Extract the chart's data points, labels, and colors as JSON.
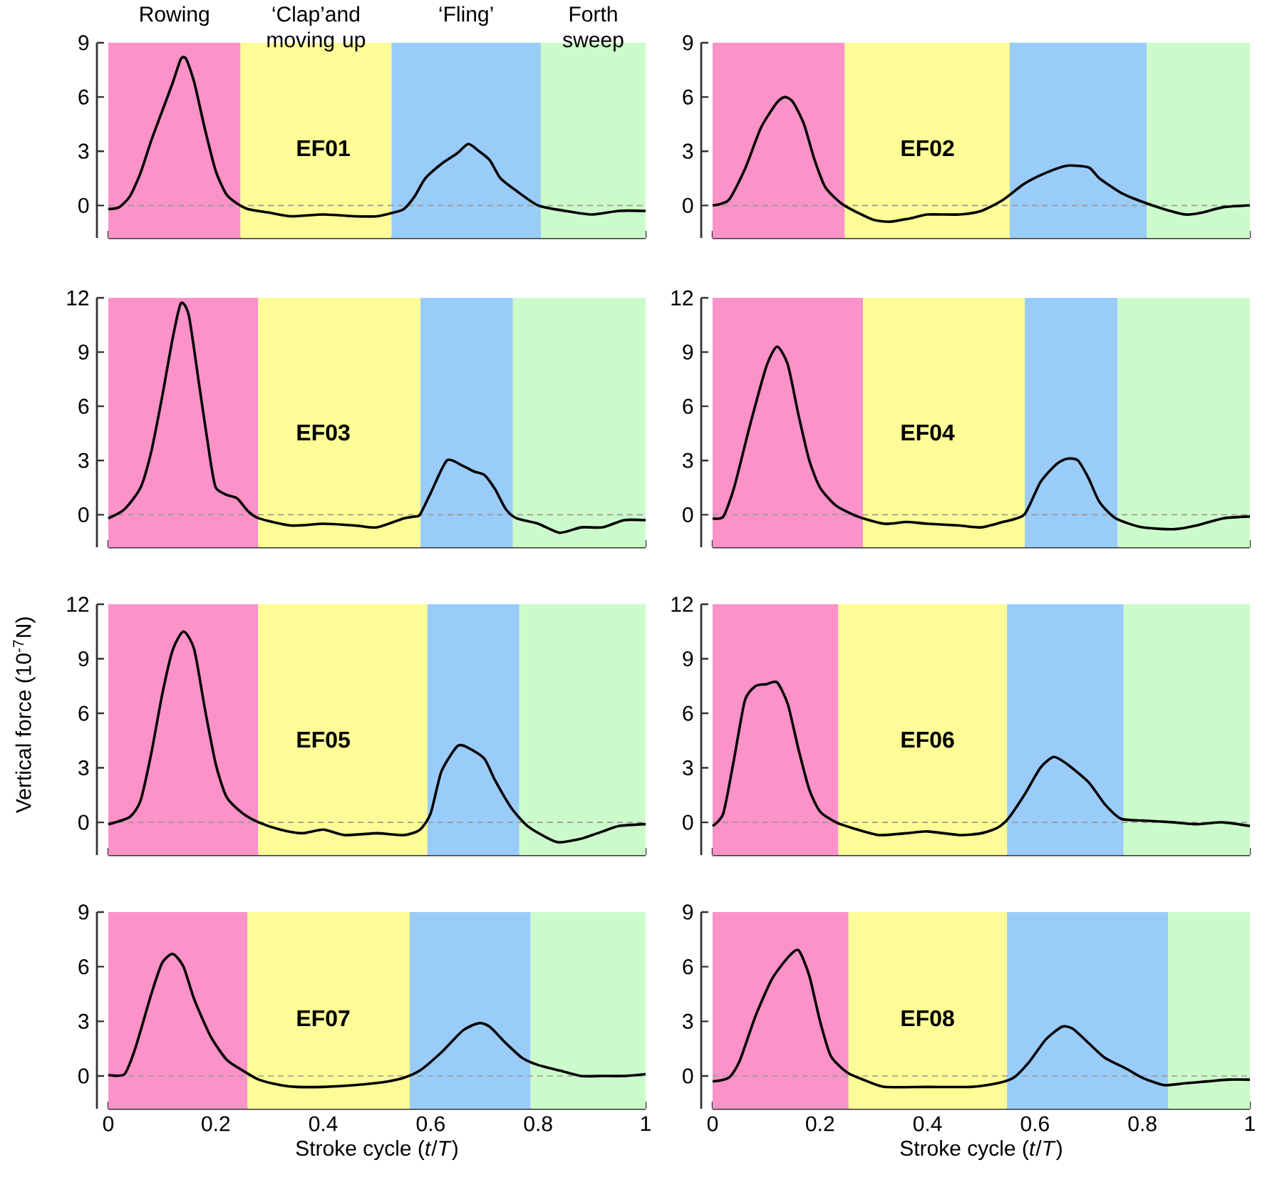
{
  "chart_data": [
    {
      "type": "line",
      "title": "EF01",
      "xlim": [
        0,
        1
      ],
      "ylim": [
        -1.8,
        9
      ],
      "xticks": [
        0,
        0.2,
        0.4,
        0.6,
        0.8,
        1
      ],
      "yticks": [
        0,
        3,
        6,
        9
      ],
      "tick_labels": "y",
      "bands": [
        {
          "axis": "x",
          "from": 0,
          "to": 0.246,
          "label": "Rowing",
          "color": "#fb92c8"
        },
        {
          "axis": "x",
          "from": 0.246,
          "to": 0.527,
          "label": "‘Clap’and moving up",
          "color": "#fdfc97"
        },
        {
          "axis": "x",
          "from": 0.527,
          "to": 0.805,
          "label": "‘Fling’",
          "color": "#9accfa"
        },
        {
          "axis": "x",
          "from": 0.805,
          "to": 1,
          "label": "Forth sweep",
          "color": "#ccfbcb"
        }
      ],
      "ref_lines": [
        {
          "axis": "y",
          "value": 0,
          "color": "#999999",
          "line_style": "dashed"
        }
      ],
      "series": [
        {
          "color": "#000000",
          "x": [
            0,
            0.02,
            0.04,
            0.06,
            0.08,
            0.1,
            0.12,
            0.135,
            0.145,
            0.16,
            0.18,
            0.2,
            0.22,
            0.24,
            0.26,
            0.3,
            0.34,
            0.4,
            0.46,
            0.5,
            0.53,
            0.55,
            0.57,
            0.59,
            0.62,
            0.65,
            0.67,
            0.69,
            0.71,
            0.73,
            0.76,
            0.8,
            0.85,
            0.9,
            0.95,
            1
          ],
          "values": [
            -0.2,
            -0.1,
            0.5,
            1.8,
            3.6,
            5.2,
            6.8,
            8.1,
            8.1,
            6.8,
            4.2,
            1.9,
            0.6,
            0.1,
            -0.2,
            -0.4,
            -0.6,
            -0.5,
            -0.6,
            -0.6,
            -0.4,
            -0.2,
            0.5,
            1.5,
            2.3,
            2.9,
            3.4,
            3.0,
            2.5,
            1.5,
            0.8,
            0,
            -0.3,
            -0.5,
            -0.3,
            -0.3
          ]
        }
      ]
    },
    {
      "type": "line",
      "title": "EF02",
      "xlim": [
        0,
        1
      ],
      "ylim": [
        -1.8,
        9
      ],
      "xticks": [
        0,
        0.2,
        0.4,
        0.6,
        0.8,
        1
      ],
      "yticks": [
        0,
        3,
        6,
        9
      ],
      "tick_labels": "y",
      "bands": [
        {
          "axis": "x",
          "from": 0,
          "to": 0.246,
          "color": "#fb92c8"
        },
        {
          "axis": "x",
          "from": 0.246,
          "to": 0.553,
          "color": "#fdfc97"
        },
        {
          "axis": "x",
          "from": 0.553,
          "to": 0.808,
          "color": "#9accfa"
        },
        {
          "axis": "x",
          "from": 0.808,
          "to": 1,
          "color": "#ccfbcb"
        }
      ],
      "ref_lines": [
        {
          "axis": "y",
          "value": 0,
          "color": "#999999",
          "line_style": "dashed"
        }
      ],
      "series": [
        {
          "color": "#000000",
          "x": [
            0,
            0.03,
            0.06,
            0.09,
            0.12,
            0.135,
            0.15,
            0.17,
            0.19,
            0.21,
            0.24,
            0.27,
            0.3,
            0.33,
            0.37,
            0.4,
            0.46,
            0.5,
            0.54,
            0.58,
            0.62,
            0.66,
            0.7,
            0.72,
            0.76,
            0.8,
            0.84,
            0.88,
            0.91,
            0.95,
            1
          ],
          "values": [
            0,
            0.3,
            2.0,
            4.3,
            5.7,
            6.0,
            5.7,
            4.5,
            2.5,
            1.0,
            0.1,
            -0.4,
            -0.8,
            -0.9,
            -0.7,
            -0.5,
            -0.5,
            -0.3,
            0.3,
            1.2,
            1.8,
            2.2,
            2.1,
            1.5,
            0.7,
            0.2,
            -0.2,
            -0.5,
            -0.4,
            -0.1,
            0
          ]
        }
      ]
    },
    {
      "type": "line",
      "title": "EF03",
      "xlim": [
        0,
        1
      ],
      "ylim": [
        -1.8,
        12
      ],
      "xticks": [
        0,
        0.2,
        0.4,
        0.6,
        0.8,
        1
      ],
      "yticks": [
        0,
        3,
        6,
        9,
        12
      ],
      "tick_labels": "y",
      "bands": [
        {
          "axis": "x",
          "from": 0,
          "to": 0.279,
          "color": "#fb92c8"
        },
        {
          "axis": "x",
          "from": 0.279,
          "to": 0.581,
          "color": "#fdfc97"
        },
        {
          "axis": "x",
          "from": 0.581,
          "to": 0.753,
          "color": "#9accfa"
        },
        {
          "axis": "x",
          "from": 0.753,
          "to": 1,
          "color": "#ccfbcb"
        }
      ],
      "ref_lines": [
        {
          "axis": "y",
          "value": 0,
          "color": "#999999",
          "line_style": "dashed"
        }
      ],
      "series": [
        {
          "color": "#000000",
          "x": [
            0,
            0.03,
            0.06,
            0.08,
            0.1,
            0.12,
            0.135,
            0.15,
            0.17,
            0.19,
            0.2,
            0.22,
            0.24,
            0.26,
            0.28,
            0.34,
            0.4,
            0.46,
            0.5,
            0.55,
            0.57,
            0.58,
            0.6,
            0.63,
            0.66,
            0.68,
            0.7,
            0.72,
            0.74,
            0.76,
            0.8,
            0.84,
            0.88,
            0.92,
            0.96,
            1
          ],
          "values": [
            -0.2,
            0.3,
            1.5,
            3.5,
            6.5,
            9.8,
            11.7,
            11,
            7,
            3,
            1.5,
            1.1,
            0.9,
            0.2,
            -0.2,
            -0.6,
            -0.5,
            -0.6,
            -0.7,
            -0.2,
            -0.1,
            0,
            1.2,
            3.0,
            2.7,
            2.4,
            2.2,
            1.4,
            0.3,
            -0.2,
            -0.5,
            -1.0,
            -0.7,
            -0.7,
            -0.3,
            -0.3
          ]
        }
      ]
    },
    {
      "type": "line",
      "title": "EF04",
      "xlim": [
        0,
        1
      ],
      "ylim": [
        -1.8,
        12
      ],
      "xticks": [
        0,
        0.2,
        0.4,
        0.6,
        0.8,
        1
      ],
      "yticks": [
        0,
        3,
        6,
        9,
        12
      ],
      "tick_labels": "y",
      "bands": [
        {
          "axis": "x",
          "from": 0,
          "to": 0.28,
          "color": "#fb92c8"
        },
        {
          "axis": "x",
          "from": 0.28,
          "to": 0.581,
          "color": "#fdfc97"
        },
        {
          "axis": "x",
          "from": 0.581,
          "to": 0.754,
          "color": "#9accfa"
        },
        {
          "axis": "x",
          "from": 0.754,
          "to": 1,
          "color": "#ccfbcb"
        }
      ],
      "ref_lines": [
        {
          "axis": "y",
          "value": 0,
          "color": "#999999",
          "line_style": "dashed"
        }
      ],
      "series": [
        {
          "color": "#000000",
          "x": [
            0,
            0.02,
            0.04,
            0.07,
            0.1,
            0.12,
            0.14,
            0.16,
            0.18,
            0.2,
            0.23,
            0.27,
            0.32,
            0.36,
            0.4,
            0.46,
            0.5,
            0.54,
            0.58,
            0.61,
            0.64,
            0.66,
            0.68,
            0.7,
            0.72,
            0.75,
            0.8,
            0.86,
            0.9,
            0.95,
            1
          ],
          "values": [
            -0.2,
            -0.1,
            1.5,
            5,
            8.2,
            9.3,
            8.3,
            5.5,
            3.0,
            1.5,
            0.5,
            -0.1,
            -0.5,
            -0.4,
            -0.5,
            -0.6,
            -0.7,
            -0.4,
            0,
            1.8,
            2.8,
            3.1,
            3.0,
            2.0,
            0.7,
            -0.2,
            -0.7,
            -0.8,
            -0.6,
            -0.2,
            -0.1
          ]
        }
      ]
    },
    {
      "type": "line",
      "title": "EF05",
      "ylabel": "Vertical force (10$^{-7}$N)",
      "xlim": [
        0,
        1
      ],
      "ylim": [
        -1.8,
        12
      ],
      "xticks": [
        0,
        0.2,
        0.4,
        0.6,
        0.8,
        1
      ],
      "yticks": [
        0,
        3,
        6,
        9,
        12
      ],
      "tick_labels": "y",
      "bands": [
        {
          "axis": "x",
          "from": 0,
          "to": 0.279,
          "color": "#fb92c8"
        },
        {
          "axis": "x",
          "from": 0.279,
          "to": 0.594,
          "color": "#fdfc97"
        },
        {
          "axis": "x",
          "from": 0.594,
          "to": 0.765,
          "color": "#9accfa"
        },
        {
          "axis": "x",
          "from": 0.765,
          "to": 1,
          "color": "#ccfbcb"
        }
      ],
      "ref_lines": [
        {
          "axis": "y",
          "value": 0,
          "color": "#999999",
          "line_style": "dashed"
        }
      ],
      "series": [
        {
          "color": "#000000",
          "x": [
            0,
            0.04,
            0.06,
            0.08,
            0.1,
            0.12,
            0.14,
            0.16,
            0.18,
            0.2,
            0.22,
            0.25,
            0.28,
            0.32,
            0.36,
            0.4,
            0.44,
            0.5,
            0.55,
            0.58,
            0.6,
            0.62,
            0.65,
            0.67,
            0.7,
            0.72,
            0.75,
            0.78,
            0.82,
            0.84,
            0.88,
            0.92,
            0.95,
            1
          ],
          "values": [
            -0.1,
            0.3,
            1.2,
            3.8,
            7.0,
            9.5,
            10.5,
            9.5,
            6.2,
            3.2,
            1.4,
            0.5,
            0,
            -0.4,
            -0.6,
            -0.4,
            -0.7,
            -0.6,
            -0.7,
            -0.4,
            0.5,
            2.8,
            4.2,
            4.1,
            3.5,
            2.3,
            0.8,
            -0.2,
            -0.9,
            -1.1,
            -0.9,
            -0.5,
            -0.2,
            -0.1
          ]
        }
      ]
    },
    {
      "type": "line",
      "title": "EF06",
      "xlim": [
        0,
        1
      ],
      "ylim": [
        -1.8,
        12
      ],
      "xticks": [
        0,
        0.2,
        0.4,
        0.6,
        0.8,
        1
      ],
      "yticks": [
        0,
        3,
        6,
        9,
        12
      ],
      "tick_labels": "y",
      "bands": [
        {
          "axis": "x",
          "from": 0,
          "to": 0.234,
          "color": "#fb92c8"
        },
        {
          "axis": "x",
          "from": 0.234,
          "to": 0.548,
          "color": "#fdfc97"
        },
        {
          "axis": "x",
          "from": 0.548,
          "to": 0.765,
          "color": "#9accfa"
        },
        {
          "axis": "x",
          "from": 0.765,
          "to": 1,
          "color": "#ccfbcb"
        }
      ],
      "ref_lines": [
        {
          "axis": "y",
          "value": 0,
          "color": "#999999",
          "line_style": "dashed"
        }
      ],
      "series": [
        {
          "color": "#000000",
          "x": [
            0,
            0.02,
            0.04,
            0.06,
            0.08,
            0.1,
            0.12,
            0.14,
            0.16,
            0.18,
            0.2,
            0.23,
            0.27,
            0.31,
            0.36,
            0.4,
            0.46,
            0.5,
            0.53,
            0.55,
            0.58,
            0.61,
            0.635,
            0.66,
            0.7,
            0.73,
            0.76,
            0.8,
            0.86,
            0.9,
            0.95,
            1
          ],
          "values": [
            -0.2,
            0.5,
            3.5,
            6.7,
            7.5,
            7.6,
            7.7,
            6.5,
            4.0,
            1.8,
            0.6,
            0,
            -0.4,
            -0.7,
            -0.6,
            -0.5,
            -0.7,
            -0.6,
            -0.3,
            0.2,
            1.5,
            3.0,
            3.6,
            3.2,
            2.2,
            1.0,
            0.2,
            0.1,
            0,
            -0.1,
            0,
            -0.2
          ]
        }
      ]
    },
    {
      "type": "line",
      "title": "EF07",
      "xlabel": "Stroke cycle (*t*/*T*)",
      "xlim": [
        0,
        1
      ],
      "ylim": [
        -1.8,
        9
      ],
      "xticks": [
        0,
        0.2,
        0.4,
        0.6,
        0.8,
        1
      ],
      "yticks": [
        0,
        3,
        6,
        9
      ],
      "bands": [
        {
          "axis": "x",
          "from": 0,
          "to": 0.259,
          "color": "#fb92c8"
        },
        {
          "axis": "x",
          "from": 0.259,
          "to": 0.561,
          "color": "#fdfc97"
        },
        {
          "axis": "x",
          "from": 0.561,
          "to": 0.786,
          "color": "#9accfa"
        },
        {
          "axis": "x",
          "from": 0.786,
          "to": 1,
          "color": "#ccfbcb"
        }
      ],
      "ref_lines": [
        {
          "axis": "y",
          "value": 0,
          "color": "#999999",
          "line_style": "dashed"
        }
      ],
      "series": [
        {
          "color": "#000000",
          "x": [
            0,
            0.03,
            0.05,
            0.08,
            0.1,
            0.12,
            0.14,
            0.16,
            0.19,
            0.22,
            0.25,
            0.28,
            0.32,
            0.35,
            0.4,
            0.46,
            0.52,
            0.55,
            0.58,
            0.62,
            0.66,
            0.69,
            0.71,
            0.74,
            0.77,
            0.8,
            0.84,
            0.88,
            0.92,
            0.96,
            1
          ],
          "values": [
            0.05,
            0.1,
            1.5,
            4.5,
            6.2,
            6.7,
            6.0,
            4.2,
            2.2,
            0.9,
            0.3,
            -0.2,
            -0.5,
            -0.6,
            -0.6,
            -0.5,
            -0.3,
            -0.1,
            0.3,
            1.3,
            2.5,
            2.9,
            2.7,
            1.8,
            1.0,
            0.6,
            0.3,
            0,
            0,
            0,
            0.1
          ]
        }
      ]
    },
    {
      "type": "line",
      "title": "EF08",
      "xlabel": "Stroke cycle (*t*/*T*)",
      "xlim": [
        0,
        1
      ],
      "ylim": [
        -1.8,
        9
      ],
      "xticks": [
        0,
        0.2,
        0.4,
        0.6,
        0.8,
        1
      ],
      "yticks": [
        0,
        3,
        6,
        9
      ],
      "bands": [
        {
          "axis": "x",
          "from": 0,
          "to": 0.253,
          "color": "#fb92c8"
        },
        {
          "axis": "x",
          "from": 0.253,
          "to": 0.548,
          "color": "#fdfc97"
        },
        {
          "axis": "x",
          "from": 0.548,
          "to": 0.848,
          "color": "#9accfa"
        },
        {
          "axis": "x",
          "from": 0.848,
          "to": 1,
          "color": "#ccfbcb"
        }
      ],
      "ref_lines": [
        {
          "axis": "y",
          "value": 0,
          "color": "#999999",
          "line_style": "dashed"
        }
      ],
      "series": [
        {
          "color": "#000000",
          "x": [
            0,
            0.03,
            0.05,
            0.08,
            0.11,
            0.14,
            0.16,
            0.18,
            0.2,
            0.22,
            0.25,
            0.28,
            0.32,
            0.4,
            0.48,
            0.53,
            0.56,
            0.59,
            0.62,
            0.65,
            0.67,
            0.7,
            0.73,
            0.77,
            0.8,
            0.84,
            0.88,
            0.92,
            0.96,
            1
          ],
          "values": [
            -0.3,
            -0.1,
            0.8,
            3.3,
            5.3,
            6.5,
            6.9,
            5.5,
            3.0,
            1.1,
            0.2,
            -0.2,
            -0.6,
            -0.6,
            -0.6,
            -0.4,
            -0.1,
            0.8,
            2.0,
            2.7,
            2.6,
            1.8,
            1.0,
            0.4,
            -0.1,
            -0.5,
            -0.4,
            -0.3,
            -0.2,
            -0.2
          ]
        }
      ]
    }
  ]
}
